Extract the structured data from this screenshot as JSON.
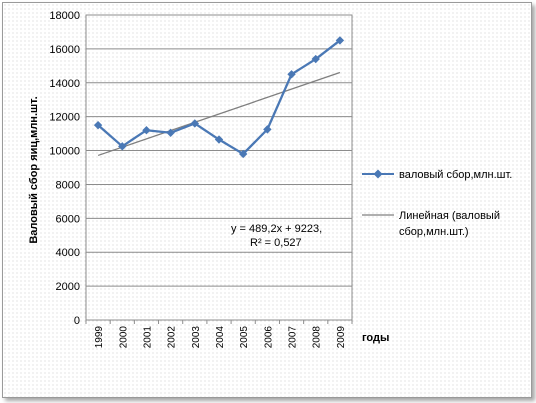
{
  "chart_data": {
    "type": "line",
    "title": "",
    "xlabel": "годы",
    "ylabel": "Валовый сбор яиц,млн.шт.",
    "categories": [
      "1999",
      "2000",
      "2001",
      "2002",
      "2003",
      "2004",
      "2005",
      "2006",
      "2007",
      "2008",
      "2009"
    ],
    "ylim": [
      0,
      18000
    ],
    "yticks": [
      "0",
      "2000",
      "4000",
      "6000",
      "8000",
      "10000",
      "12000",
      "14000",
      "16000",
      "18000"
    ],
    "grid": "horizontal",
    "legend_position": "right",
    "series": [
      {
        "name": "валовый сбор,млн.шт.",
        "values": [
          11500,
          10250,
          11200,
          11050,
          11600,
          10650,
          9800,
          11250,
          14500,
          15400,
          16500
        ],
        "color": "#4a78b5",
        "marker": "diamond"
      }
    ],
    "trendline": {
      "name": "Линейная (валовый сбор,млн.шт.)",
      "type": "linear",
      "slope": 489.2,
      "intercept": 9223,
      "color": "#7f7f7f",
      "equation_lines": [
        "y = 489,2x + 9223,",
        "R² = 0,527"
      ]
    }
  }
}
